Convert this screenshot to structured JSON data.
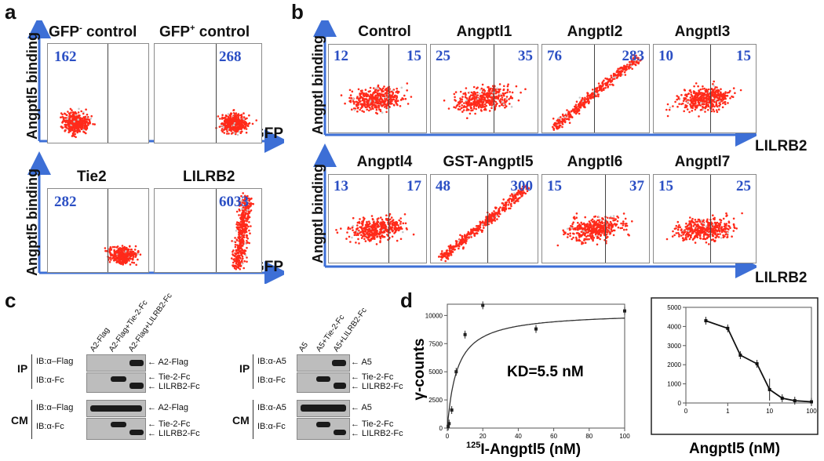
{
  "panels": {
    "a": "a",
    "b": "b",
    "c": "c",
    "d": "d"
  },
  "panel_a": {
    "y_label": "Angptl5 binding",
    "x_label": "GFP",
    "plots": [
      {
        "title_main": "GFP",
        "title_sup": "-",
        "title_rest": " control",
        "count": "162"
      },
      {
        "title_main": "GFP",
        "title_sup": "+",
        "title_rest": " control",
        "count": "268"
      },
      {
        "title_main": "Tie2",
        "title_sup": "",
        "title_rest": "",
        "count": "282"
      },
      {
        "title_main": "LILRB2",
        "title_sup": "",
        "title_rest": "",
        "count": "6033"
      }
    ]
  },
  "panel_b": {
    "y_label": "Angptl binding",
    "x_label": "LILRB2",
    "plots": [
      {
        "title": "Control",
        "left": "12",
        "right": "15"
      },
      {
        "title": "Angptl1",
        "left": "25",
        "right": "35"
      },
      {
        "title": "Angptl2",
        "left": "76",
        "right": "283"
      },
      {
        "title": "Angptl3",
        "left": "10",
        "right": "15"
      },
      {
        "title": "Angptl4",
        "left": "13",
        "right": "17"
      },
      {
        "title": "GST-Angptl5",
        "left": "48",
        "right": "300"
      },
      {
        "title": "Angptl6",
        "left": "15",
        "right": "37"
      },
      {
        "title": "Angptl7",
        "left": "15",
        "right": "25"
      }
    ]
  },
  "panel_c": {
    "left": {
      "lanes": [
        "A2-Flag",
        "A2-Flag+Tie-2-Fc",
        "A2-Flag+LILRB2-Fc"
      ],
      "ip_label": "IP",
      "cm_label": "CM",
      "rows": [
        {
          "ib": "IB:α–Flag",
          "right": [
            "← A2-Flag"
          ]
        },
        {
          "ib": "IB:α-Fc",
          "right": [
            "← Tie-2-Fc",
            "← LILRB2-Fc"
          ]
        },
        {
          "ib": "IB:α–Flag",
          "right": [
            "← A2-Flag"
          ]
        },
        {
          "ib": "IB:α-Fc",
          "right": [
            "← Tie-2-Fc",
            "← LILRB2-Fc"
          ]
        }
      ]
    },
    "right": {
      "lanes": [
        "A5",
        "A5+Tie-2-Fc",
        "A5+LILRB2-Fc"
      ],
      "ip_label": "IP",
      "cm_label": "CM",
      "rows": [
        {
          "ib": "IB:α-A5",
          "right": [
            "← A5"
          ]
        },
        {
          "ib": "IB:α-Fc",
          "right": [
            "← Tie-2-Fc",
            "← LILRB2-Fc"
          ]
        },
        {
          "ib": "IB:α-A5",
          "right": [
            "← A5"
          ]
        },
        {
          "ib": "IB:α-Fc",
          "right": [
            "← Tie-2-Fc",
            "← LILRB2-Fc"
          ]
        }
      ]
    }
  },
  "chart_data": [
    {
      "type": "line",
      "xlabel_sup": "125",
      "xlabel": "I-Angptl5 (nM)",
      "ylabel": "γ-counts",
      "annotation": "KD=5.5 nM",
      "xlim": [
        0,
        100
      ],
      "ylim": [
        0,
        11000
      ],
      "x_ticks": [
        "0",
        "20",
        "40",
        "60",
        "80",
        "100"
      ],
      "y_ticks": [
        "0",
        "2500",
        "5000",
        "7500",
        "10000"
      ],
      "points": [
        {
          "x": 0.5,
          "y": 150
        },
        {
          "x": 1,
          "y": 400
        },
        {
          "x": 2.5,
          "y": 1600
        },
        {
          "x": 5,
          "y": 5000
        },
        {
          "x": 10,
          "y": 8300
        },
        {
          "x": 20,
          "y": 10900
        },
        {
          "x": 50,
          "y": 8800
        },
        {
          "x": 100,
          "y": 10400
        }
      ],
      "fit_kd": 5.5,
      "fit_bmax": 10300
    },
    {
      "type": "line",
      "xlabel": "Angptl5 (nM)",
      "ylabel": "γ-counts",
      "log_x": true,
      "xlim": [
        0.1,
        100
      ],
      "ylim": [
        0,
        5000
      ],
      "x_ticks": [
        "0",
        "1",
        "10",
        "100"
      ],
      "y_ticks": [
        "0",
        "1000",
        "2000",
        "3000",
        "4000",
        "5000"
      ],
      "points": [
        {
          "x": 0.3,
          "y": 4300
        },
        {
          "x": 1,
          "y": 3900
        },
        {
          "x": 2,
          "y": 2500
        },
        {
          "x": 5,
          "y": 2050
        },
        {
          "x": 10,
          "y": 700
        },
        {
          "x": 20,
          "y": 250
        },
        {
          "x": 40,
          "y": 120
        },
        {
          "x": 100,
          "y": 60
        }
      ]
    }
  ],
  "colors": {
    "number_blue": "#2b4fc4",
    "dot_red": "#ff2a1a",
    "axis_blue": "#3d6fd6"
  }
}
